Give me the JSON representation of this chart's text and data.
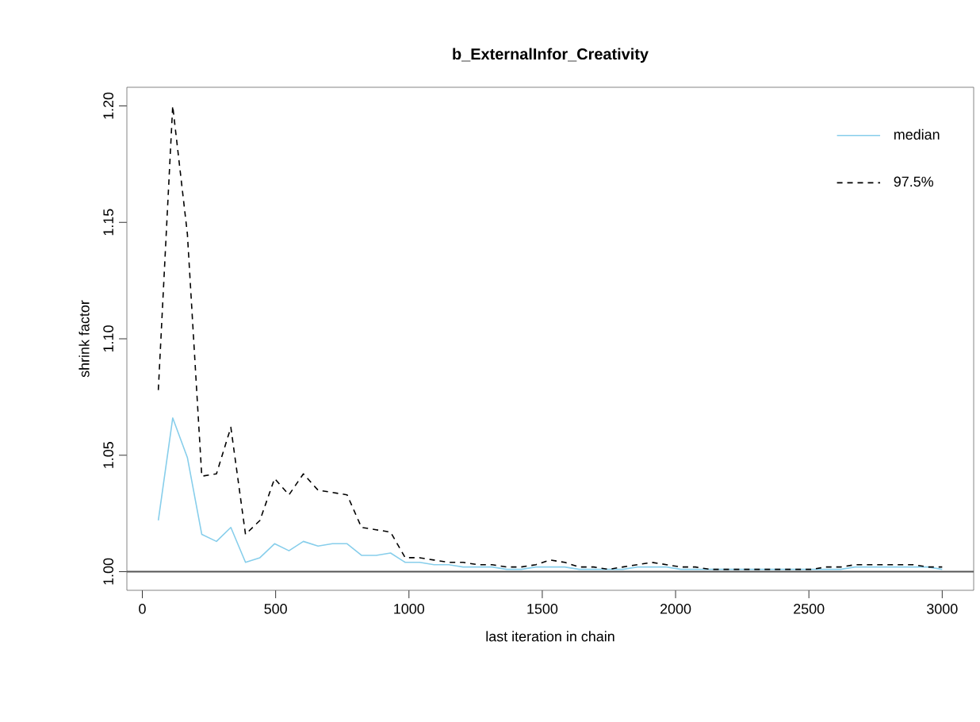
{
  "chart_data": {
    "type": "line",
    "title": "b_ExternalInfor_Creativity",
    "xlabel": "last iteration in chain",
    "ylabel": "shrink factor",
    "x": [
      60,
      114,
      169,
      223,
      278,
      332,
      387,
      441,
      496,
      550,
      604,
      659,
      713,
      768,
      822,
      877,
      931,
      986,
      1040,
      1094,
      1149,
      1203,
      1258,
      1312,
      1367,
      1421,
      1476,
      1530,
      1584,
      1639,
      1693,
      1748,
      1802,
      1857,
      1911,
      1966,
      2020,
      2074,
      2129,
      2183,
      2238,
      2292,
      2347,
      2401,
      2456,
      2510,
      2564,
      2619,
      2673,
      2728,
      2782,
      2837,
      2891,
      2946,
      3000
    ],
    "series": [
      {
        "name": "median",
        "color": "#87ceeb",
        "line_style": "solid",
        "values": [
          1.022,
          1.066,
          1.049,
          1.016,
          1.013,
          1.019,
          1.004,
          1.006,
          1.012,
          1.009,
          1.013,
          1.011,
          1.012,
          1.012,
          1.007,
          1.007,
          1.008,
          1.004,
          1.004,
          1.003,
          1.003,
          1.002,
          1.002,
          1.002,
          1.001,
          1.001,
          1.002,
          1.002,
          1.002,
          1.001,
          1.001,
          1.001,
          1.001,
          1.002,
          1.002,
          1.002,
          1.001,
          1.001,
          1.001,
          1.001,
          1.001,
          1.001,
          1.001,
          1.001,
          1.001,
          1.001,
          1.001,
          1.001,
          1.002,
          1.002,
          1.002,
          1.002,
          1.002,
          1.002,
          1.001
        ]
      },
      {
        "name": "97.5%",
        "color": "#000000",
        "line_style": "dashed",
        "values": [
          1.078,
          1.2,
          1.145,
          1.041,
          1.042,
          1.062,
          1.016,
          1.022,
          1.04,
          1.033,
          1.042,
          1.035,
          1.034,
          1.033,
          1.019,
          1.018,
          1.017,
          1.006,
          1.006,
          1.005,
          1.004,
          1.004,
          1.003,
          1.003,
          1.002,
          1.002,
          1.003,
          1.005,
          1.004,
          1.002,
          1.002,
          1.001,
          1.002,
          1.003,
          1.004,
          1.003,
          1.002,
          1.002,
          1.001,
          1.001,
          1.001,
          1.001,
          1.001,
          1.001,
          1.001,
          1.001,
          1.002,
          1.002,
          1.003,
          1.003,
          1.003,
          1.003,
          1.003,
          1.002,
          1.002
        ]
      }
    ],
    "xlim": [
      -58,
      3118
    ],
    "ylim": [
      0.992,
      1.208
    ],
    "xticks": [
      0,
      500,
      1000,
      1500,
      2000,
      2500,
      3000
    ],
    "yticks": [
      {
        "value": 1.0,
        "label": "1.00"
      },
      {
        "value": 1.05,
        "label": "1.05"
      },
      {
        "value": 1.1,
        "label": "1.10"
      },
      {
        "value": 1.15,
        "label": "1.15"
      },
      {
        "value": 1.2,
        "label": "1.20"
      }
    ],
    "ref_lines": [
      {
        "axis": "y",
        "value": 1.0,
        "color": "#555555"
      }
    ],
    "legend": "top right",
    "grid": false,
    "marker": "none"
  }
}
